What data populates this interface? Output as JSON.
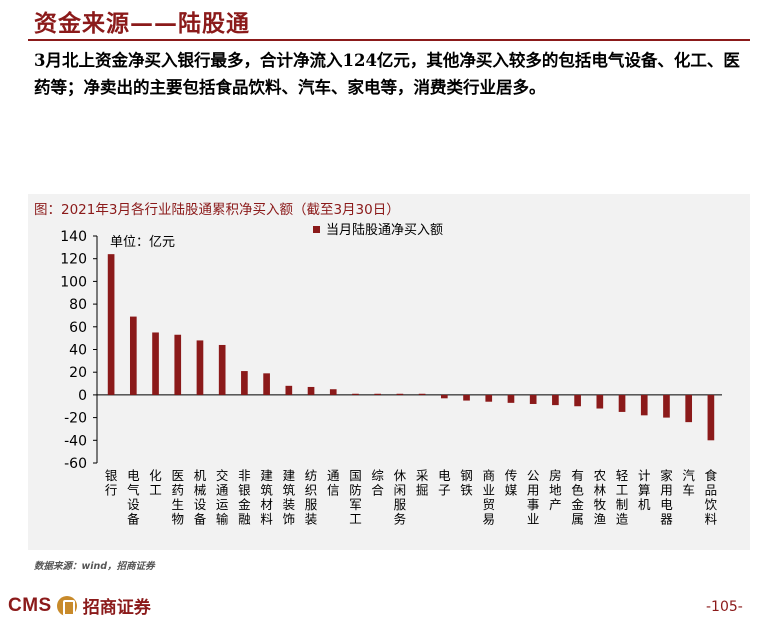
{
  "header": {
    "title": "资金来源——陆股通"
  },
  "body": {
    "paragraph": "3月北上资金净买入银行最多，合计净流入124亿元，其他净买入较多的包括电气设备、化工、医药等；净卖出的主要包括食品饮料、汽车、家电等，消费类行业居多。"
  },
  "chart_data": {
    "type": "bar",
    "title": "图：2021年3月各行业陆股通累积净买入额（截至3月30日）",
    "unit_label": "单位：亿元",
    "legend": [
      "当月陆股通净买入额"
    ],
    "bar_color": "#8b1a1a",
    "ylim": [
      -60,
      140
    ],
    "yticks": [
      140,
      120,
      100,
      80,
      60,
      40,
      20,
      0,
      -20,
      -40,
      -60
    ],
    "categories": [
      "银行",
      "电气设备",
      "化工",
      "医药生物",
      "机械设备",
      "交通运输",
      "非银金融",
      "建筑材料",
      "建筑装饰",
      "纺织服装",
      "通信",
      "国防军工",
      "综合",
      "休闲服务",
      "采掘",
      "电子",
      "钢铁",
      "商业贸易",
      "传媒",
      "公用事业",
      "房地产",
      "有色金属",
      "农林牧渔",
      "轻工制造",
      "计算机",
      "家用电器",
      "汽车",
      "食品饮料"
    ],
    "series": [
      {
        "name": "当月陆股通净买入额",
        "values": [
          124,
          69,
          55,
          53,
          48,
          44,
          21,
          19,
          8,
          7,
          5,
          1,
          1,
          1,
          1,
          -3,
          -5,
          -6,
          -7,
          -8,
          -9,
          -10,
          -12,
          -15,
          -18,
          -20,
          -24,
          -40
        ]
      }
    ]
  },
  "footer": {
    "source": "数据来源：wind，招商证券",
    "logo_text": "CMS",
    "logo_cn": "招商证券",
    "page": "-105-"
  }
}
